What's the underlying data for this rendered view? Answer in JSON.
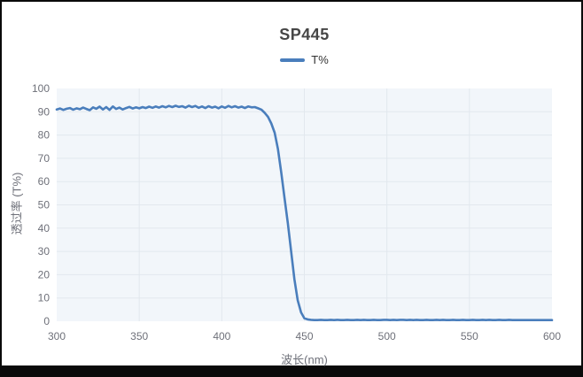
{
  "colors": {
    "line": "#4a7ebc",
    "plot_bg": "#f2f6fa",
    "grid": "#e2e8ee",
    "tick_text": "#6e7079",
    "title_text": "#464646",
    "legend_text": "#333333",
    "axis_name_text": "#6e7079",
    "frame": "#0a0a0a"
  },
  "chart_data": {
    "type": "line",
    "title": "SP445",
    "legend": [
      "T%"
    ],
    "xlabel": "波长(nm)",
    "ylabel": "透过率 (T%)",
    "xlim": [
      300,
      600
    ],
    "ylim": [
      0,
      100
    ],
    "xticks": [
      300,
      350,
      400,
      450,
      500,
      550,
      600
    ],
    "yticks": [
      0,
      10,
      20,
      30,
      40,
      50,
      60,
      70,
      80,
      90,
      100
    ],
    "grid": true,
    "legend_position": "top-center",
    "series_name": "T%",
    "x": [
      300,
      302,
      304,
      306,
      308,
      310,
      312,
      314,
      316,
      318,
      320,
      322,
      324,
      326,
      328,
      330,
      332,
      334,
      336,
      338,
      340,
      342,
      344,
      346,
      348,
      350,
      352,
      354,
      356,
      358,
      360,
      362,
      364,
      366,
      368,
      370,
      372,
      374,
      376,
      378,
      380,
      382,
      384,
      386,
      388,
      390,
      392,
      394,
      396,
      398,
      400,
      402,
      404,
      406,
      408,
      410,
      412,
      414,
      416,
      418,
      420,
      422,
      424,
      426,
      428,
      430,
      432,
      434,
      436,
      438,
      440,
      442,
      444,
      446,
      448,
      450,
      452,
      454,
      456,
      458,
      460,
      462,
      464,
      466,
      468,
      470,
      472,
      474,
      476,
      478,
      480,
      482,
      484,
      486,
      488,
      490,
      492,
      494,
      496,
      498,
      500,
      502,
      504,
      506,
      508,
      510,
      512,
      514,
      516,
      518,
      520,
      522,
      524,
      526,
      528,
      530,
      532,
      534,
      536,
      538,
      540,
      542,
      544,
      546,
      548,
      550,
      552,
      554,
      556,
      558,
      560,
      562,
      564,
      566,
      568,
      570,
      572,
      574,
      576,
      578,
      580,
      582,
      584,
      586,
      588,
      590,
      592,
      594,
      596,
      598,
      600
    ],
    "values": [
      91.0,
      91.4,
      90.8,
      91.3,
      91.6,
      90.9,
      91.5,
      91.1,
      91.8,
      91.2,
      90.7,
      91.9,
      91.3,
      92.2,
      91.0,
      92.0,
      90.8,
      92.3,
      91.2,
      91.8,
      91.0,
      91.6,
      92.1,
      91.4,
      91.9,
      91.5,
      92.0,
      91.6,
      92.2,
      91.7,
      92.3,
      91.8,
      92.4,
      91.9,
      92.5,
      92.0,
      92.6,
      92.1,
      92.4,
      91.8,
      92.6,
      92.0,
      92.5,
      91.7,
      92.3,
      91.6,
      92.4,
      91.8,
      92.2,
      91.5,
      92.3,
      91.7,
      92.5,
      91.9,
      92.4,
      91.8,
      92.2,
      91.6,
      92.3,
      91.9,
      92.0,
      91.5,
      90.9,
      89.5,
      87.8,
      85.0,
      81.0,
      74.0,
      64.0,
      53.0,
      42.0,
      30.0,
      18.0,
      9.0,
      3.8,
      1.3,
      0.8,
      0.6,
      0.5,
      0.5,
      0.6,
      0.5,
      0.5,
      0.6,
      0.5,
      0.6,
      0.5,
      0.5,
      0.6,
      0.5,
      0.5,
      0.6,
      0.5,
      0.6,
      0.5,
      0.5,
      0.6,
      0.5,
      0.5,
      0.6,
      0.6,
      0.5,
      0.6,
      0.5,
      0.6,
      0.6,
      0.5,
      0.6,
      0.5,
      0.6,
      0.5,
      0.5,
      0.6,
      0.5,
      0.5,
      0.6,
      0.5,
      0.6,
      0.5,
      0.5,
      0.6,
      0.5,
      0.5,
      0.6,
      0.5,
      0.5,
      0.6,
      0.5,
      0.5,
      0.6,
      0.5,
      0.6,
      0.5,
      0.5,
      0.6,
      0.5,
      0.5,
      0.6,
      0.5,
      0.5,
      0.5,
      0.5,
      0.5,
      0.5,
      0.5,
      0.5,
      0.5,
      0.5,
      0.5,
      0.5,
      0.5
    ]
  }
}
